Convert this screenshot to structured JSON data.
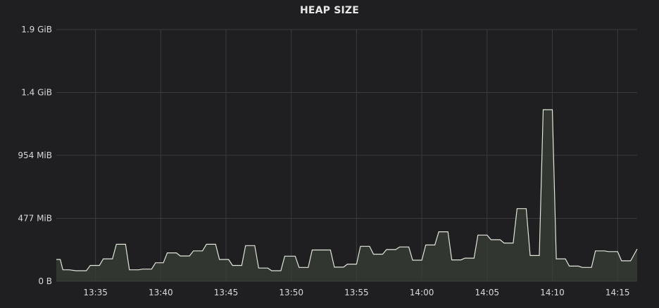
{
  "panel": {
    "title": "HEAP SIZE"
  },
  "colors": {
    "background": "#1f1f21",
    "grid": "#3b3b3e",
    "line": "#e0e6da",
    "fill": "#3a3f37",
    "text": "#d8d9da"
  },
  "chart_data": {
    "type": "area",
    "title": "HEAP SIZE",
    "xlabel": "",
    "ylabel": "",
    "grid": true,
    "legend": "none",
    "x_unit": "minutes",
    "xlim": [
      "13:32",
      "14:16.5"
    ],
    "ylim_mib": [
      0,
      1907
    ],
    "y_ticks": [
      {
        "label": "0 B",
        "value_mib": 0
      },
      {
        "label": "477 MiB",
        "value_mib": 477
      },
      {
        "label": "954 MiB",
        "value_mib": 954
      },
      {
        "label": "1.4 GiB",
        "value_mib": 1430
      },
      {
        "label": "1.9 GiB",
        "value_mib": 1907
      }
    ],
    "x_ticks": [
      "13:35",
      "13:40",
      "13:45",
      "13:50",
      "13:55",
      "14:00",
      "14:05",
      "14:10",
      "14:15"
    ],
    "series": [
      {
        "unit": "MiB",
        "points": [
          [
            "13:32",
            165
          ],
          [
            "13:32.3",
            165
          ],
          [
            "13:32.5",
            87
          ],
          [
            "13:33",
            87
          ],
          [
            "13:33.5",
            80
          ],
          [
            "13:34.3",
            80
          ],
          [
            "13:34.6",
            120
          ],
          [
            "13:35.3",
            120
          ],
          [
            "13:35.6",
            170
          ],
          [
            "13:36.3",
            170
          ],
          [
            "13:36.6",
            280
          ],
          [
            "13:37.3",
            280
          ],
          [
            "13:37.6",
            87
          ],
          [
            "13:38.3",
            87
          ],
          [
            "13:38.6",
            92
          ],
          [
            "13:39.3",
            92
          ],
          [
            "13:39.6",
            140
          ],
          [
            "13:40.2",
            140
          ],
          [
            "13:40.5",
            215
          ],
          [
            "13:41.2",
            215
          ],
          [
            "13:41.5",
            192
          ],
          [
            "13:42.2",
            192
          ],
          [
            "13:42.5",
            230
          ],
          [
            "13:43.2",
            230
          ],
          [
            "13:43.5",
            280
          ],
          [
            "13:44.2",
            280
          ],
          [
            "13:44.5",
            165
          ],
          [
            "13:45.2",
            165
          ],
          [
            "13:45.5",
            120
          ],
          [
            "13:46.2",
            120
          ],
          [
            "13:46.5",
            270
          ],
          [
            "13:47.2",
            270
          ],
          [
            "13:47.5",
            100
          ],
          [
            "13:48.2",
            100
          ],
          [
            "13:48.5",
            80
          ],
          [
            "13:49.2",
            80
          ],
          [
            "13:49.5",
            190
          ],
          [
            "13:50.3",
            190
          ],
          [
            "13:50.6",
            105
          ],
          [
            "13:51.3",
            105
          ],
          [
            "13:51.6",
            237
          ],
          [
            "13:53",
            237
          ],
          [
            "13:53.3",
            107
          ],
          [
            "13:54",
            107
          ],
          [
            "13:54.3",
            130
          ],
          [
            "13:55",
            130
          ],
          [
            "13:55.3",
            265
          ],
          [
            "13:56",
            265
          ],
          [
            "13:56.3",
            205
          ],
          [
            "13:57",
            205
          ],
          [
            "13:57.3",
            240
          ],
          [
            "13:58",
            240
          ],
          [
            "13:58.3",
            260
          ],
          [
            "13:59",
            260
          ],
          [
            "13:59.3",
            160
          ],
          [
            "14:00",
            160
          ],
          [
            "14:00.3",
            275
          ],
          [
            "14:01",
            275
          ],
          [
            "14:01.3",
            375
          ],
          [
            "14:02",
            375
          ],
          [
            "14:02.3",
            162
          ],
          [
            "14:03",
            162
          ],
          [
            "14:03.3",
            175
          ],
          [
            "14:04",
            175
          ],
          [
            "14:04.3",
            350
          ],
          [
            "14:05",
            350
          ],
          [
            "14:05.3",
            315
          ],
          [
            "14:06",
            315
          ],
          [
            "14:06.3",
            290
          ],
          [
            "14:07",
            290
          ],
          [
            "14:07.3",
            550
          ],
          [
            "14:08",
            550
          ],
          [
            "14:08.3",
            195
          ],
          [
            "14:09",
            195
          ],
          [
            "14:09.3",
            1300
          ],
          [
            "14:10",
            1300
          ],
          [
            "14:10.3",
            170
          ],
          [
            "14:11",
            170
          ],
          [
            "14:11.3",
            115
          ],
          [
            "14:12",
            115
          ],
          [
            "14:12.3",
            105
          ],
          [
            "14:13",
            105
          ],
          [
            "14:13.3",
            230
          ],
          [
            "14:14",
            230
          ],
          [
            "14:14.3",
            225
          ],
          [
            "14:15",
            225
          ],
          [
            "14:15.3",
            155
          ],
          [
            "14:16",
            155
          ],
          [
            "14:16.5",
            245
          ]
        ]
      }
    ]
  }
}
